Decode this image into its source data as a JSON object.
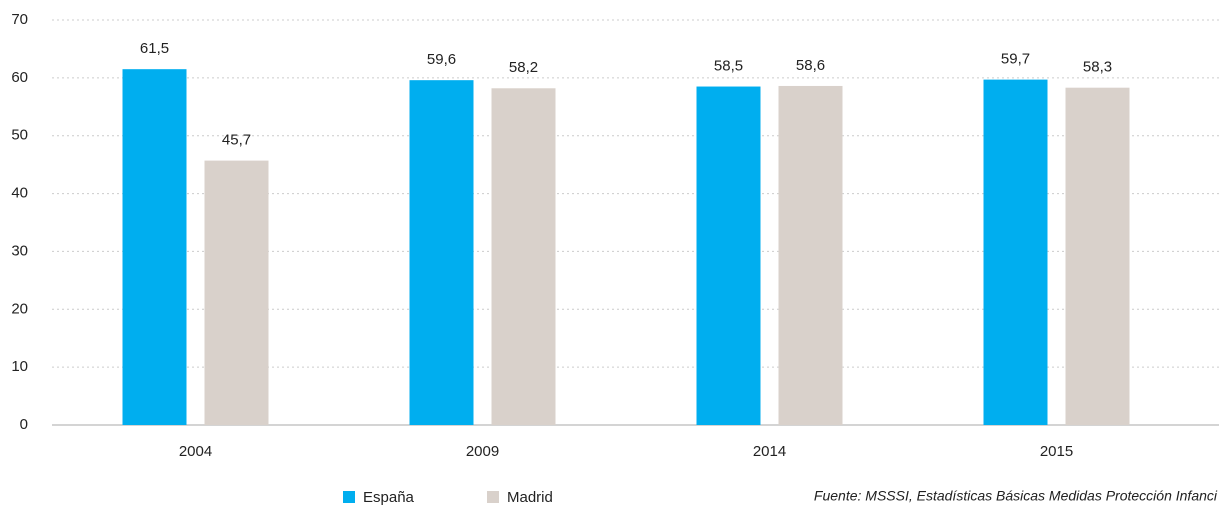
{
  "chart_data": {
    "type": "bar",
    "categories": [
      "2004",
      "2009",
      "2014",
      "2015"
    ],
    "series": [
      {
        "name": "España",
        "color": "#00aeef",
        "values": [
          61.5,
          59.6,
          58.5,
          59.7
        ],
        "value_labels": [
          "61,5",
          "59,6",
          "58,5",
          "59,7"
        ]
      },
      {
        "name": "Madrid",
        "color": "#d9d1cb",
        "values": [
          45.7,
          58.2,
          58.6,
          58.3
        ],
        "value_labels": [
          "45,7",
          "58,2",
          "58,6",
          "58,3"
        ]
      }
    ],
    "ylim": [
      0,
      70
    ],
    "yticks": [
      0,
      10,
      20,
      30,
      40,
      50,
      60,
      70
    ],
    "grid": true,
    "legend": "bottom",
    "source": "Fuente: MSSSI, Estadísticas Básicas Medidas Protección Infanci"
  }
}
